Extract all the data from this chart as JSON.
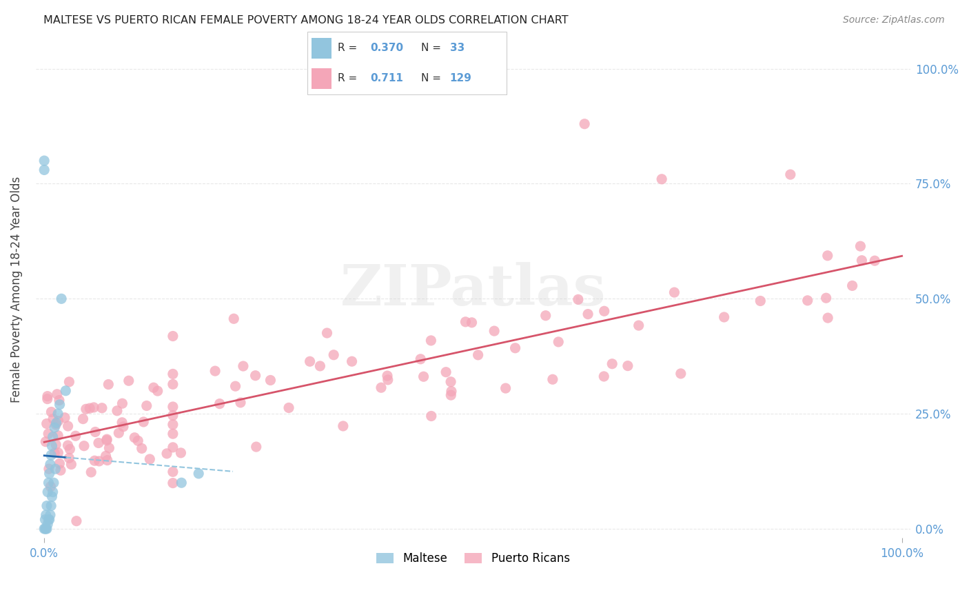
{
  "title": "MALTESE VS PUERTO RICAN FEMALE POVERTY AMONG 18-24 YEAR OLDS CORRELATION CHART",
  "source": "Source: ZipAtlas.com",
  "ylabel": "Female Poverty Among 18-24 Year Olds",
  "legend_maltese_R": "0.370",
  "legend_maltese_N": "33",
  "legend_puertoRican_R": "0.711",
  "legend_puertoRican_N": "129",
  "maltese_color": "#92c5de",
  "puertoRican_color": "#f4a6b8",
  "maltese_line_solid_color": "#2166ac",
  "maltese_line_dash_color": "#92c5de",
  "puertoRican_line_color": "#d6546a",
  "tick_color": "#5b9bd5",
  "watermark": "ZIPatlas",
  "grid_color": "#e8e8e8",
  "xlim": [
    0.0,
    1.0
  ],
  "ylim": [
    0.0,
    1.05
  ]
}
